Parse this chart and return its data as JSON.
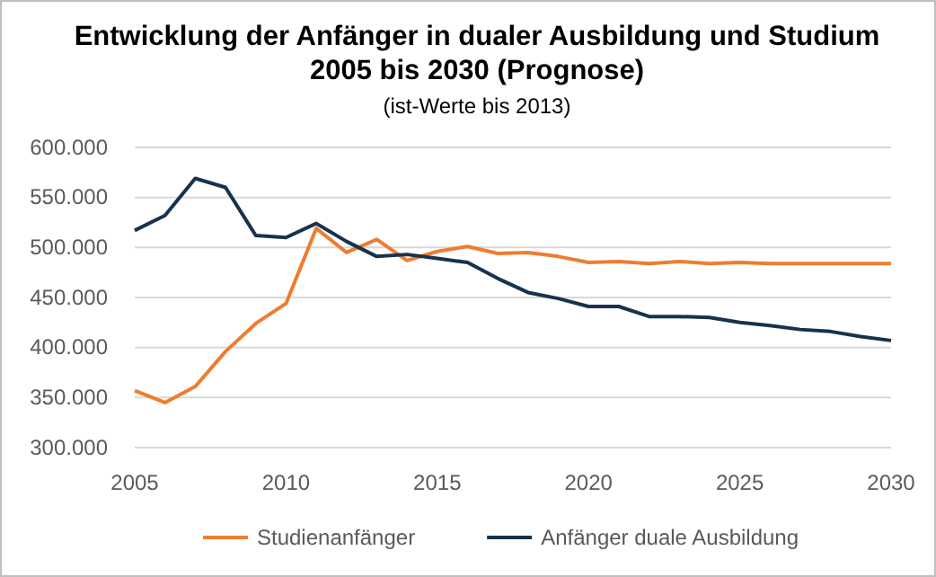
{
  "chart_data": {
    "type": "line",
    "title": "Entwicklung der Anfänger in dualer Ausbildung und Studium\n2005 bis 2030 (Prognose)",
    "subtitle": "(ist-Werte bis 2013)",
    "x": [
      2005,
      2006,
      2007,
      2008,
      2009,
      2010,
      2011,
      2012,
      2013,
      2014,
      2015,
      2016,
      2017,
      2018,
      2019,
      2020,
      2021,
      2022,
      2023,
      2024,
      2025,
      2026,
      2027,
      2028,
      2029,
      2030
    ],
    "series": [
      {
        "name": "Studienanfänger",
        "color": "#ed7d31",
        "values": [
          357000,
          345000,
          361000,
          396000,
          424000,
          444000,
          519000,
          495000,
          508000,
          487000,
          496000,
          501000,
          494000,
          495000,
          491000,
          485000,
          486000,
          484000,
          486000,
          484000,
          485000,
          484000,
          484000,
          484000,
          484000,
          484000
        ]
      },
      {
        "name": "Anfänger duale Ausbildung",
        "color": "#17324d",
        "values": [
          517000,
          532000,
          569000,
          560000,
          512000,
          510000,
          524000,
          506000,
          491000,
          493000,
          489000,
          485000,
          469000,
          455000,
          449000,
          441000,
          441000,
          431000,
          431000,
          430000,
          425000,
          422000,
          418000,
          416000,
          411000,
          407000
        ]
      }
    ],
    "xlim": [
      2005,
      2030
    ],
    "xticks": [
      2005,
      2010,
      2015,
      2020,
      2025,
      2030
    ],
    "ylim": [
      300000,
      600000
    ],
    "yticks": [
      {
        "value": 300000,
        "label": "300.000"
      },
      {
        "value": 350000,
        "label": "350.000"
      },
      {
        "value": 400000,
        "label": "400.000"
      },
      {
        "value": 450000,
        "label": "450.000"
      },
      {
        "value": 500000,
        "label": "500.000"
      },
      {
        "value": 550000,
        "label": "550.000"
      },
      {
        "value": 600000,
        "label": "600.000"
      }
    ],
    "grid": "y",
    "legend": "bottom",
    "marker": "none",
    "line_style": "solid"
  }
}
